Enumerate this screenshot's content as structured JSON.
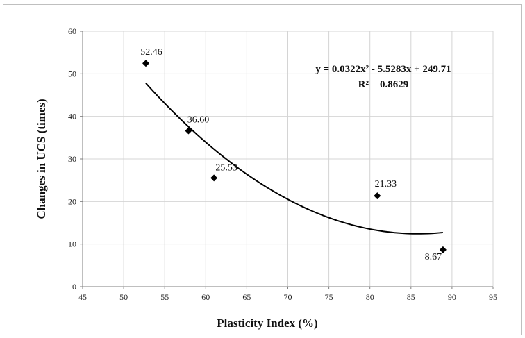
{
  "chart_data": {
    "type": "scatter",
    "xlabel": "Plasticity Index (%)",
    "ylabel": "Changes in UCS (times)",
    "xlim": [
      45,
      95
    ],
    "ylim": [
      0,
      60
    ],
    "xticks": [
      45,
      50,
      55,
      60,
      65,
      70,
      75,
      80,
      85,
      90,
      95
    ],
    "yticks": [
      0,
      10,
      20,
      30,
      40,
      50,
      60
    ],
    "x_tick_labels": [
      "45",
      "50",
      "55",
      "60",
      "65",
      "70",
      "75",
      "80",
      "85",
      "90",
      "95"
    ],
    "y_tick_labels": [
      "0",
      "10",
      "20",
      "30",
      "40",
      "50",
      "60"
    ],
    "grid": true,
    "marker": "diamond",
    "marker_color": "#000000",
    "points": [
      {
        "x": 52.7,
        "y": 52.46,
        "label": "52.46"
      },
      {
        "x": 57.9,
        "y": 36.6,
        "label": "36.60"
      },
      {
        "x": 61.0,
        "y": 25.53,
        "label": "25.53"
      },
      {
        "x": 80.9,
        "y": 21.33,
        "label": "21.33"
      },
      {
        "x": 88.9,
        "y": 8.67,
        "label": "8.67"
      }
    ],
    "trendline": {
      "type": "polynomial",
      "coefficients": [
        0.0322,
        -5.5283,
        249.71
      ],
      "x_range": [
        52.7,
        88.9
      ],
      "equation_text": "y = 0.0322x² - 5.5283x + 249.71",
      "r2_text": "R² = 0.8629"
    }
  }
}
